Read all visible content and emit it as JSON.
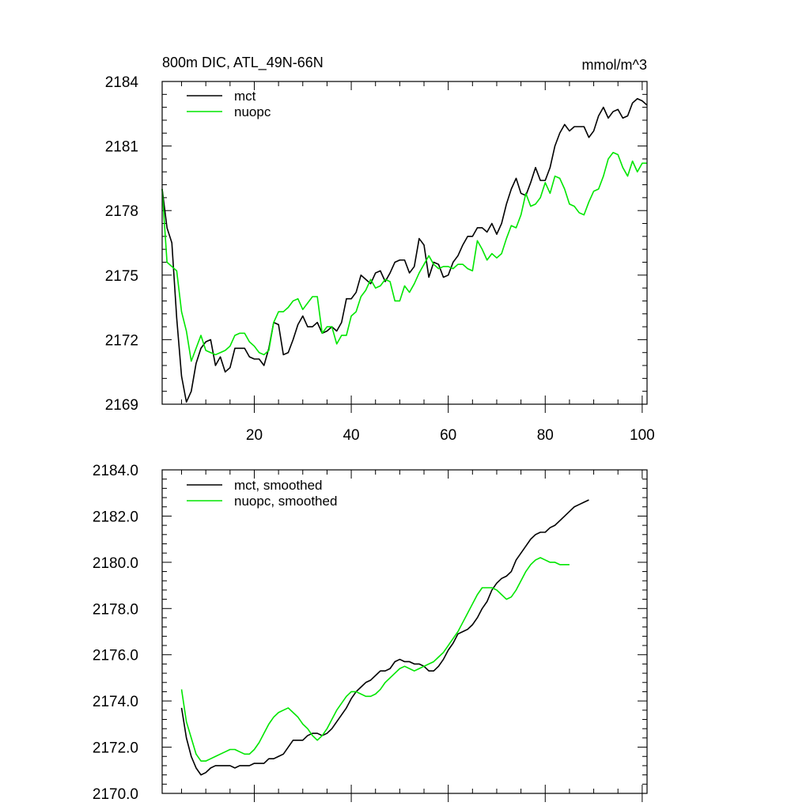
{
  "chart_data": [
    {
      "type": "line",
      "title_left": "800m DIC, ATL_49N-66N",
      "title_right": "mmol/m^3",
      "xlabel": "",
      "ylabel": "",
      "xlim": [
        1,
        101
      ],
      "ylim": [
        2169,
        2184
      ],
      "x_ticks": [
        20,
        40,
        60,
        80,
        100
      ],
      "y_ticks": [
        2169,
        2172,
        2175,
        2178,
        2181,
        2184
      ],
      "y_tick_labels": [
        "2169",
        "2172",
        "2175",
        "2178",
        "2181",
        "2184"
      ],
      "legend_position": "top-left",
      "series": [
        {
          "name": "mct",
          "color": "#000000",
          "x_start": 1,
          "values": [
            2179.0,
            2177.2,
            2176.5,
            2173.0,
            2170.3,
            2169.1,
            2169.6,
            2170.9,
            2171.6,
            2171.9,
            2172.0,
            2170.8,
            2171.2,
            2170.5,
            2170.7,
            2171.6,
            2171.6,
            2171.6,
            2171.2,
            2171.1,
            2171.1,
            2170.8,
            2171.6,
            2172.8,
            2172.7,
            2171.3,
            2171.4,
            2172.0,
            2172.7,
            2173.1,
            2172.6,
            2172.6,
            2172.8,
            2172.3,
            2172.4,
            2172.6,
            2172.4,
            2172.8,
            2173.9,
            2173.9,
            2174.2,
            2175.0,
            2174.8,
            2174.6,
            2175.1,
            2175.2,
            2174.7,
            2175.1,
            2175.6,
            2175.7,
            2175.7,
            2175.1,
            2175.4,
            2176.7,
            2176.4,
            2174.9,
            2175.6,
            2175.5,
            2174.9,
            2175.0,
            2175.6,
            2175.9,
            2176.4,
            2176.8,
            2176.8,
            2177.2,
            2177.2,
            2177.0,
            2177.4,
            2176.9,
            2177.4,
            2178.3,
            2179.0,
            2179.5,
            2178.8,
            2178.7,
            2179.3,
            2180.0,
            2179.4,
            2179.4,
            2180.0,
            2181.0,
            2181.6,
            2182.0,
            2181.7,
            2181.9,
            2181.9,
            2181.9,
            2181.4,
            2181.7,
            2182.4,
            2182.8,
            2182.3,
            2182.6,
            2182.7,
            2182.3,
            2182.4,
            2183.0,
            2183.2,
            2183.1,
            2182.9
          ]
        },
        {
          "name": "nuopc",
          "color": "#00e600",
          "x_start": 1,
          "values": [
            2179.0,
            2175.6,
            2175.4,
            2175.2,
            2173.3,
            2172.4,
            2171.0,
            2171.6,
            2172.2,
            2171.5,
            2171.4,
            2171.3,
            2171.4,
            2171.5,
            2171.7,
            2172.2,
            2172.3,
            2172.3,
            2171.9,
            2171.7,
            2171.4,
            2171.3,
            2171.5,
            2172.8,
            2173.3,
            2173.3,
            2173.5,
            2173.8,
            2173.9,
            2173.4,
            2173.7,
            2174.0,
            2174.0,
            2172.3,
            2172.6,
            2172.6,
            2171.8,
            2172.2,
            2172.2,
            2173.1,
            2173.3,
            2174.0,
            2174.3,
            2174.8,
            2174.4,
            2174.5,
            2174.8,
            2174.7,
            2173.8,
            2173.8,
            2174.5,
            2174.2,
            2174.6,
            2175.1,
            2175.5,
            2175.9,
            2175.5,
            2175.3,
            2175.4,
            2175.4,
            2175.3,
            2175.5,
            2175.5,
            2175.3,
            2175.2,
            2176.6,
            2176.2,
            2175.7,
            2176.0,
            2175.8,
            2176.0,
            2176.7,
            2177.3,
            2177.2,
            2177.8,
            2178.8,
            2178.2,
            2178.3,
            2178.6,
            2179.3,
            2178.8,
            2179.6,
            2179.5,
            2179.0,
            2178.3,
            2178.2,
            2177.9,
            2177.8,
            2178.4,
            2178.9,
            2179.0,
            2179.6,
            2180.4,
            2180.7,
            2180.6,
            2180.0,
            2179.6,
            2180.3,
            2179.8,
            2180.2,
            2180.2
          ]
        }
      ]
    },
    {
      "type": "line",
      "title_left": "",
      "title_right": "",
      "xlabel": "",
      "ylabel": "",
      "xlim": [
        1,
        101
      ],
      "ylim": [
        2170,
        2184
      ],
      "x_ticks": [
        20,
        40,
        60,
        80,
        100
      ],
      "y_ticks": [
        2170,
        2172,
        2174,
        2176,
        2178,
        2180,
        2182,
        2184
      ],
      "y_tick_labels": [
        "2170.0",
        "2172.0",
        "2174.0",
        "2176.0",
        "2178.0",
        "2180.0",
        "2182.0",
        "2184.0"
      ],
      "legend_position": "top-left",
      "series": [
        {
          "name": "mct, smoothed",
          "color": "#000000",
          "x_start": 5,
          "values": [
            2173.7,
            2172.4,
            2171.6,
            2171.1,
            2170.8,
            2170.9,
            2171.1,
            2171.2,
            2171.2,
            2171.2,
            2171.2,
            2171.1,
            2171.2,
            2171.2,
            2171.2,
            2171.3,
            2171.3,
            2171.3,
            2171.5,
            2171.5,
            2171.6,
            2171.7,
            2172.0,
            2172.3,
            2172.3,
            2172.3,
            2172.5,
            2172.6,
            2172.6,
            2172.5,
            2172.6,
            2172.8,
            2173.1,
            2173.4,
            2173.7,
            2174.1,
            2174.4,
            2174.6,
            2174.8,
            2174.9,
            2175.1,
            2175.3,
            2175.3,
            2175.4,
            2175.7,
            2175.8,
            2175.7,
            2175.7,
            2175.6,
            2175.6,
            2175.5,
            2175.3,
            2175.3,
            2175.5,
            2175.8,
            2176.2,
            2176.5,
            2176.9,
            2177.0,
            2177.1,
            2177.3,
            2177.6,
            2178.0,
            2178.3,
            2178.8,
            2179.1,
            2179.3,
            2179.4,
            2179.6,
            2180.1,
            2180.4,
            2180.7,
            2181.0,
            2181.2,
            2181.3,
            2181.3,
            2181.5,
            2181.6,
            2181.8,
            2182.0,
            2182.2,
            2182.4,
            2182.5,
            2182.6,
            2182.7
          ]
        },
        {
          "name": "nuopc, smoothed",
          "color": "#00e600",
          "x_start": 5,
          "values": [
            2174.5,
            2173.1,
            2172.4,
            2171.7,
            2171.4,
            2171.4,
            2171.5,
            2171.6,
            2171.7,
            2171.8,
            2171.9,
            2171.9,
            2171.8,
            2171.7,
            2171.7,
            2171.9,
            2172.2,
            2172.6,
            2173.0,
            2173.3,
            2173.5,
            2173.6,
            2173.7,
            2173.5,
            2173.3,
            2173.0,
            2172.8,
            2172.5,
            2172.3,
            2172.5,
            2172.8,
            2173.2,
            2173.6,
            2173.9,
            2174.2,
            2174.4,
            2174.4,
            2174.3,
            2174.2,
            2174.2,
            2174.3,
            2174.5,
            2174.8,
            2175.0,
            2175.2,
            2175.4,
            2175.5,
            2175.4,
            2175.3,
            2175.4,
            2175.5,
            2175.6,
            2175.7,
            2175.9,
            2176.1,
            2176.4,
            2176.7,
            2177.0,
            2177.4,
            2177.8,
            2178.2,
            2178.6,
            2178.9,
            2178.9,
            2178.9,
            2178.8,
            2178.6,
            2178.4,
            2178.5,
            2178.8,
            2179.2,
            2179.6,
            2179.9,
            2180.1,
            2180.2,
            2180.1,
            2180.0,
            2180.0,
            2179.9,
            2179.9,
            2179.9
          ]
        }
      ]
    }
  ]
}
